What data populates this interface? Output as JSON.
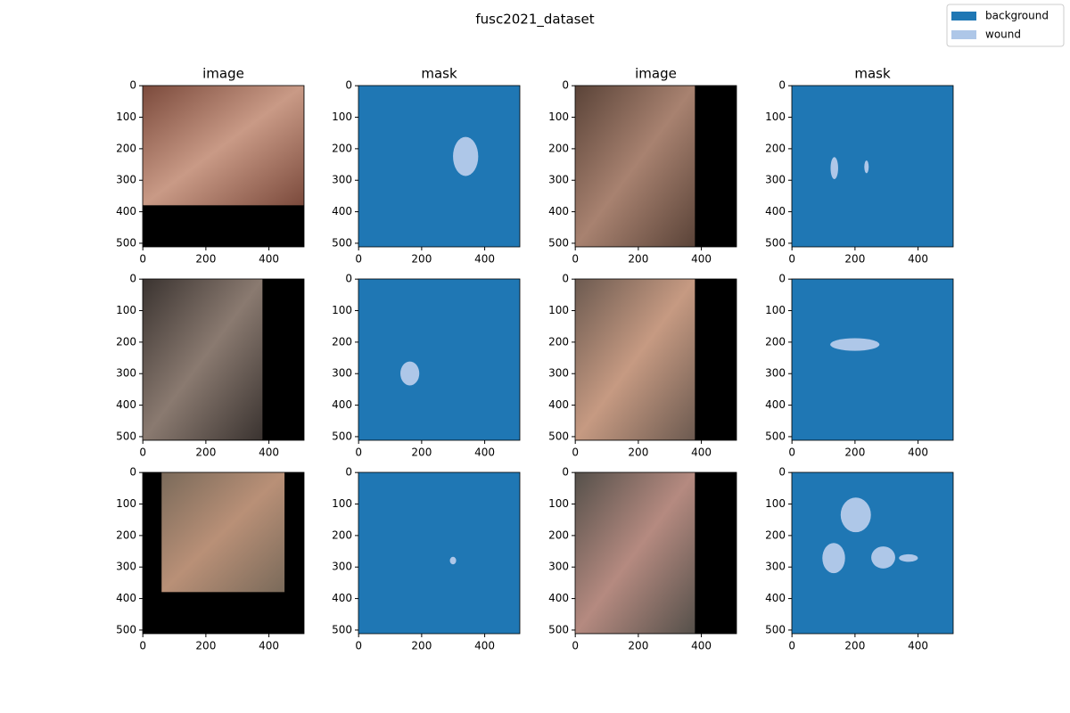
{
  "title": "fusc2021_dataset",
  "legend": [
    {
      "label": "background",
      "color": "#1f77b4"
    },
    {
      "label": "wound",
      "color": "#aec7e8"
    }
  ],
  "column_titles": [
    "image",
    "mask",
    "image",
    "mask"
  ],
  "xlim": [
    -0.5,
    511.5
  ],
  "ylim": [
    511.5,
    -0.5
  ],
  "xticks": [
    0,
    200,
    400
  ],
  "yticks": [
    0,
    100,
    200,
    300,
    400,
    500
  ]
}
